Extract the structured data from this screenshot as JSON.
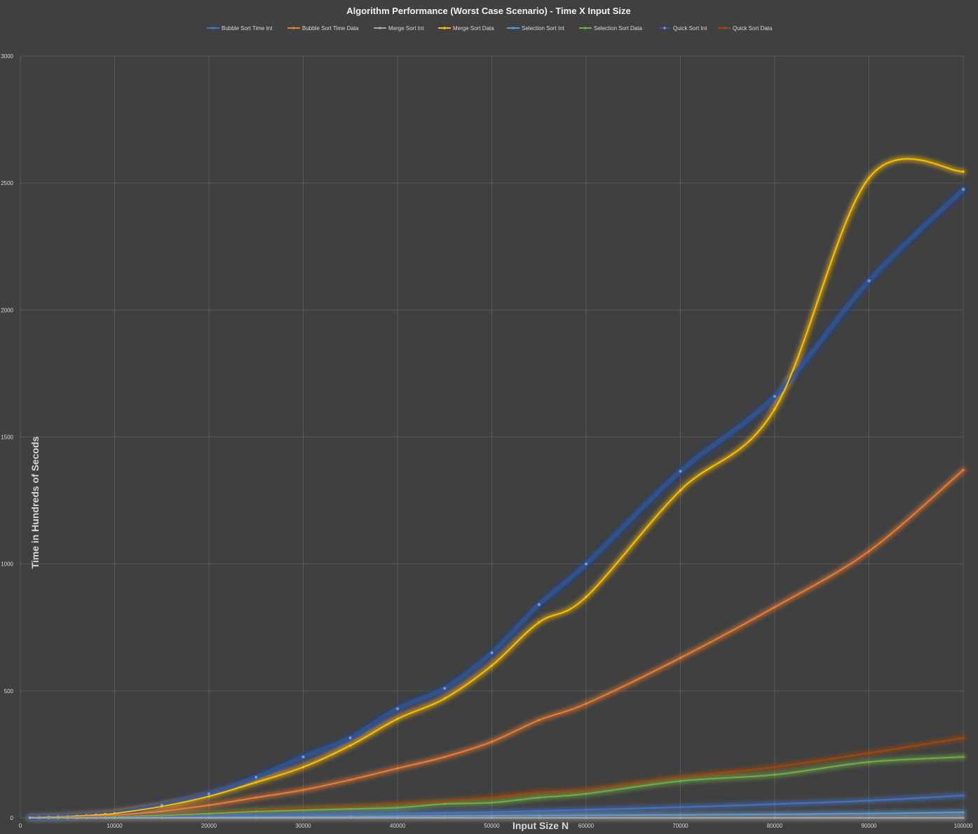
{
  "chart_data": {
    "type": "line",
    "title": "Algorithm Performance (Worst Case Scenario) - Time X Input Size",
    "xlabel": "Input Size N",
    "ylabel": "Time in Hundreds of Secods",
    "xlim": [
      0,
      100000
    ],
    "ylim": [
      0,
      3000
    ],
    "x_ticks": [
      "0",
      "10000",
      "20000",
      "30000",
      "40000",
      "50000",
      "60000",
      "70000",
      "80000",
      "90000",
      "100000"
    ],
    "y_ticks": [
      "0",
      "500",
      "1000",
      "1500",
      "2000",
      "2500",
      "3000"
    ],
    "grid": true,
    "legend_position": "top",
    "x": [
      1000,
      2000,
      3000,
      4000,
      5000,
      6000,
      7000,
      8000,
      9000,
      10000,
      15000,
      20000,
      25000,
      30000,
      35000,
      40000,
      45000,
      50000,
      55000,
      60000,
      70000,
      80000,
      90000,
      100000
    ],
    "series": [
      {
        "name": "Bubble Sort Time Int",
        "color": "#4472c4",
        "values": [
          0,
          0,
          1,
          1,
          1,
          1,
          1,
          2,
          2,
          2,
          4,
          6,
          9,
          12,
          15,
          17,
          20,
          23,
          27,
          32,
          42,
          54,
          68,
          88
        ]
      },
      {
        "name": "Bubble Sort Time Data",
        "color": "#ed7d31",
        "values": [
          0,
          1,
          1,
          2,
          3,
          4,
          6,
          7,
          9,
          11,
          26,
          50,
          80,
          110,
          150,
          195,
          240,
          300,
          385,
          450,
          630,
          830,
          1050,
          1370
        ]
      },
      {
        "name": "Merge Sort Int",
        "color": "#a5a5a5",
        "values": [
          0,
          0,
          0,
          0,
          0,
          0,
          0,
          0,
          0,
          0,
          0,
          0,
          0,
          0,
          0,
          0,
          0,
          0,
          0,
          0,
          0,
          0,
          0,
          0
        ]
      },
      {
        "name": "Merge Sort Data",
        "color": "#ffc000",
        "values": [
          1,
          2,
          3,
          4,
          5,
          7,
          9,
          11,
          14,
          17,
          45,
          85,
          140,
          200,
          285,
          390,
          470,
          600,
          770,
          870,
          1290,
          1610,
          2520,
          2545
        ]
      },
      {
        "name": "Selection Sort Int",
        "color": "#5b9bd5",
        "values": [
          0,
          0,
          0,
          0,
          0,
          0,
          0,
          0,
          1,
          1,
          1,
          2,
          3,
          4,
          5,
          6,
          7,
          8,
          9,
          10,
          12,
          14,
          17,
          22
        ]
      },
      {
        "name": "Selection Sort Data",
        "color": "#70ad47",
        "values": [
          0,
          0,
          1,
          1,
          1,
          2,
          2,
          3,
          4,
          5,
          10,
          17,
          25,
          30,
          35,
          40,
          55,
          60,
          80,
          95,
          145,
          170,
          220,
          240
        ]
      },
      {
        "name": "Quick Sort Int",
        "color": "#264478",
        "values": [
          1,
          2,
          3,
          4,
          5,
          7,
          9,
          12,
          15,
          18,
          50,
          95,
          160,
          240,
          315,
          430,
          510,
          650,
          840,
          1000,
          1365,
          1660,
          2115,
          2475
        ]
      },
      {
        "name": "Quick Sort Data",
        "color": "#9e480e",
        "values": [
          0,
          1,
          1,
          1,
          2,
          2,
          3,
          4,
          5,
          6,
          12,
          20,
          30,
          38,
          45,
          55,
          65,
          80,
          100,
          110,
          160,
          200,
          255,
          315
        ]
      }
    ]
  }
}
